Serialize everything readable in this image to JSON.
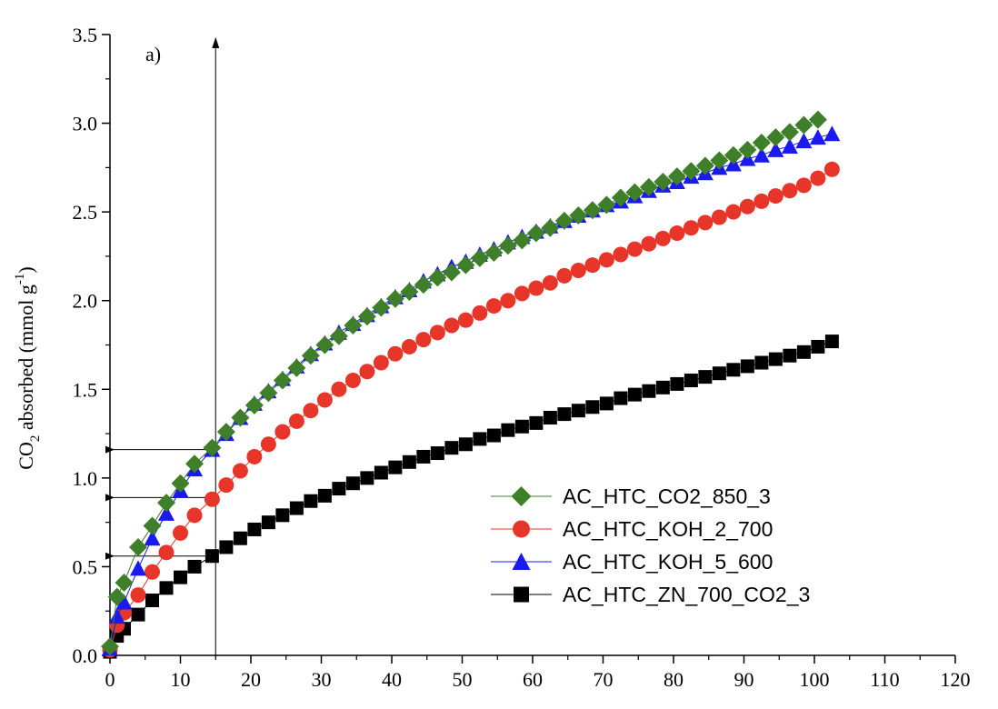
{
  "chart_data": {
    "type": "scatter",
    "panel_label": "a)",
    "ylabel_parts": {
      "main": "CO",
      "sub": "2",
      "rest": " absorbed (mmol g",
      "sup": "-1",
      "close": ")"
    },
    "xlabel": "",
    "xlim": [
      0,
      120
    ],
    "ylim": [
      0,
      3.5
    ],
    "x_ticks": [
      0,
      10,
      20,
      30,
      40,
      50,
      60,
      70,
      80,
      90,
      100,
      110,
      120
    ],
    "y_ticks": [
      "0.0",
      "0.5",
      "1.0",
      "1.5",
      "2.0",
      "2.5",
      "3.0",
      "3.5"
    ],
    "legend_position": "lower-right",
    "reference_line": {
      "x": 15
    },
    "reference_arrows": [
      1.16,
      0.89,
      0.56
    ],
    "series": [
      {
        "name": "AC_HTC_CO2_850_3",
        "color": "#3f7f2a",
        "marker": "diamond",
        "x": [
          0,
          1,
          2,
          4,
          6,
          8,
          10,
          12,
          14.5,
          16.5,
          18.5,
          20.5,
          22.5,
          24.5,
          26.5,
          28.5,
          30.5,
          32.5,
          34.5,
          36.5,
          38.5,
          40.5,
          42.5,
          44.5,
          46.5,
          48.5,
          50.5,
          52.5,
          54.5,
          56.5,
          58.5,
          60.5,
          62.5,
          64.5,
          66.5,
          68.5,
          70.5,
          72.5,
          74.5,
          76.5,
          78.5,
          80.5,
          82.5,
          84.5,
          86.5,
          88.5,
          90.5,
          92.5,
          94.5,
          96.5,
          98.5,
          100.5
        ],
        "y": [
          0.05,
          0.33,
          0.41,
          0.61,
          0.73,
          0.86,
          0.97,
          1.08,
          1.17,
          1.26,
          1.34,
          1.41,
          1.48,
          1.55,
          1.62,
          1.69,
          1.75,
          1.8,
          1.86,
          1.91,
          1.96,
          2.01,
          2.05,
          2.09,
          2.13,
          2.16,
          2.2,
          2.24,
          2.27,
          2.31,
          2.34,
          2.38,
          2.41,
          2.45,
          2.48,
          2.51,
          2.54,
          2.58,
          2.61,
          2.64,
          2.67,
          2.7,
          2.73,
          2.76,
          2.79,
          2.82,
          2.85,
          2.89,
          2.92,
          2.95,
          2.99,
          3.02
        ]
      },
      {
        "name": "AC_HTC_KOH_2_700",
        "color": "#e8352a",
        "marker": "circle",
        "x": [
          0,
          1,
          2,
          4,
          6,
          8,
          10,
          12,
          14.5,
          16.5,
          18.5,
          20.5,
          22.5,
          24.5,
          26.5,
          28.5,
          30.5,
          32.5,
          34.5,
          36.5,
          38.5,
          40.5,
          42.5,
          44.5,
          46.5,
          48.5,
          50.5,
          52.5,
          54.5,
          56.5,
          58.5,
          60.5,
          62.5,
          64.5,
          66.5,
          68.5,
          70.5,
          72.5,
          74.5,
          76.5,
          78.5,
          80.5,
          82.5,
          84.5,
          86.5,
          88.5,
          90.5,
          92.5,
          94.5,
          96.5,
          98.5,
          100.5,
          102.5
        ],
        "y": [
          0.03,
          0.17,
          0.24,
          0.34,
          0.47,
          0.58,
          0.69,
          0.79,
          0.88,
          0.96,
          1.04,
          1.12,
          1.19,
          1.26,
          1.32,
          1.38,
          1.44,
          1.5,
          1.55,
          1.6,
          1.65,
          1.7,
          1.74,
          1.78,
          1.82,
          1.86,
          1.89,
          1.93,
          1.97,
          2.0,
          2.04,
          2.07,
          2.1,
          2.14,
          2.17,
          2.2,
          2.23,
          2.26,
          2.29,
          2.32,
          2.35,
          2.38,
          2.41,
          2.44,
          2.47,
          2.5,
          2.53,
          2.56,
          2.59,
          2.62,
          2.65,
          2.69,
          2.74
        ]
      },
      {
        "name": "AC_HTC_KOH_5_600",
        "color": "#1a1aee",
        "marker": "triangle",
        "x": [
          0,
          1,
          2,
          4,
          6,
          8,
          10,
          12,
          14.5,
          16.5,
          18.5,
          20.5,
          22.5,
          24.5,
          26.5,
          28.5,
          30.5,
          32.5,
          34.5,
          36.5,
          38.5,
          40.5,
          42.5,
          44.5,
          46.5,
          48.5,
          50.5,
          52.5,
          54.5,
          56.5,
          58.5,
          60.5,
          62.5,
          64.5,
          66.5,
          68.5,
          70.5,
          72.5,
          74.5,
          76.5,
          78.5,
          80.5,
          82.5,
          84.5,
          86.5,
          88.5,
          90.5,
          92.5,
          94.5,
          96.5,
          98.5,
          100.5,
          102.5
        ],
        "y": [
          0.04,
          0.22,
          0.3,
          0.49,
          0.66,
          0.8,
          0.93,
          1.05,
          1.16,
          1.25,
          1.34,
          1.42,
          1.49,
          1.56,
          1.63,
          1.7,
          1.76,
          1.82,
          1.87,
          1.92,
          1.97,
          2.02,
          2.06,
          2.11,
          2.15,
          2.19,
          2.22,
          2.26,
          2.29,
          2.33,
          2.36,
          2.39,
          2.42,
          2.45,
          2.48,
          2.51,
          2.54,
          2.56,
          2.59,
          2.62,
          2.65,
          2.67,
          2.7,
          2.72,
          2.75,
          2.77,
          2.8,
          2.82,
          2.85,
          2.87,
          2.9,
          2.92,
          2.94
        ]
      },
      {
        "name": "AC_HTC_ZN_700_CO2_3",
        "color": "#000000",
        "marker": "square",
        "x": [
          0,
          1,
          2,
          4,
          6,
          8,
          10,
          12,
          14.5,
          16.5,
          18.5,
          20.5,
          22.5,
          24.5,
          26.5,
          28.5,
          30.5,
          32.5,
          34.5,
          36.5,
          38.5,
          40.5,
          42.5,
          44.5,
          46.5,
          48.5,
          50.5,
          52.5,
          54.5,
          56.5,
          58.5,
          60.5,
          62.5,
          64.5,
          66.5,
          68.5,
          70.5,
          72.5,
          74.5,
          76.5,
          78.5,
          80.5,
          82.5,
          84.5,
          86.5,
          88.5,
          90.5,
          92.5,
          94.5,
          96.5,
          98.5,
          100.5,
          102.5
        ],
        "y": [
          0.02,
          0.11,
          0.15,
          0.23,
          0.31,
          0.38,
          0.44,
          0.5,
          0.56,
          0.61,
          0.66,
          0.71,
          0.75,
          0.79,
          0.83,
          0.87,
          0.9,
          0.94,
          0.97,
          1.0,
          1.03,
          1.06,
          1.09,
          1.12,
          1.14,
          1.17,
          1.19,
          1.22,
          1.24,
          1.27,
          1.29,
          1.31,
          1.34,
          1.36,
          1.38,
          1.4,
          1.42,
          1.45,
          1.47,
          1.49,
          1.51,
          1.53,
          1.55,
          1.57,
          1.59,
          1.61,
          1.63,
          1.65,
          1.67,
          1.69,
          1.71,
          1.74,
          1.77
        ]
      }
    ]
  }
}
